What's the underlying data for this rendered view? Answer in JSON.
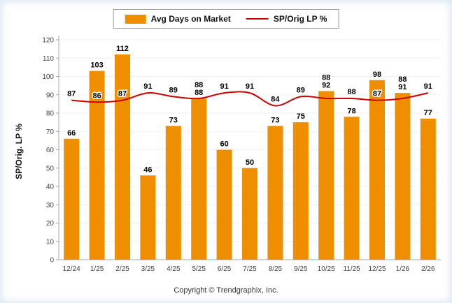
{
  "legend": {
    "bar_label": "Avg Days on Market",
    "line_label": "SP/Orig LP %"
  },
  "footer": "Copyright © Trendgraphix, Inc.",
  "chart_data": {
    "type": "bar+line",
    "title": "",
    "xlabel": "",
    "ylabel": "SP/Orig. LP %",
    "ylim": [
      0,
      120
    ],
    "ytick_step": 10,
    "grid": true,
    "legend_position": "top",
    "categories": [
      "12/24",
      "1/25",
      "2/25",
      "3/25",
      "4/25",
      "5/25",
      "6/25",
      "7/25",
      "8/25",
      "9/25",
      "10/25",
      "11/25",
      "12/25",
      "1/26",
      "2/26"
    ],
    "series": [
      {
        "name": "Avg Days on Market",
        "type": "bar",
        "color": "#EF8F00",
        "values": [
          66,
          103,
          112,
          46,
          73,
          88,
          60,
          50,
          73,
          75,
          92,
          78,
          98,
          91,
          77
        ]
      },
      {
        "name": "SP/Orig LP %",
        "type": "line",
        "color": "#CC0000",
        "values": [
          87,
          86,
          87,
          91,
          89,
          88,
          91,
          91,
          84,
          89,
          88,
          88,
          87,
          88,
          91
        ]
      }
    ]
  }
}
